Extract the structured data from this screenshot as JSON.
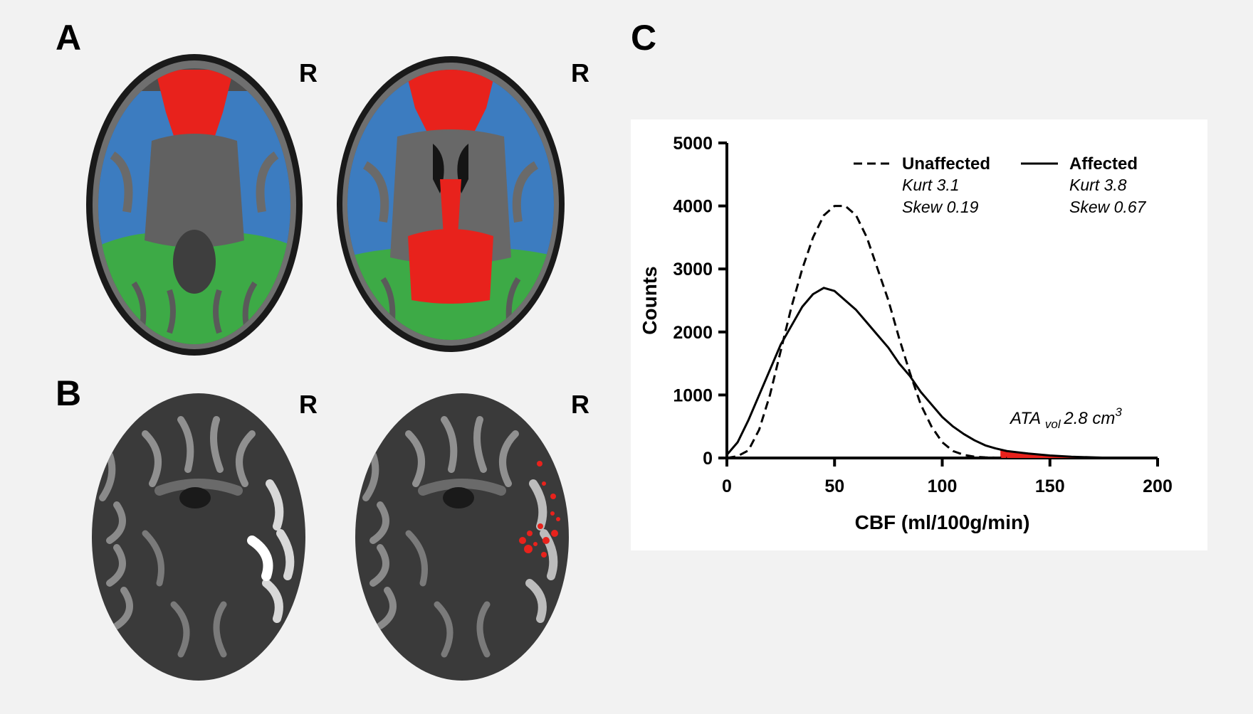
{
  "panels": {
    "A": {
      "letter": "A",
      "orientation": "R"
    },
    "B": {
      "letter": "B",
      "orientation": "R"
    },
    "C": {
      "letter": "C"
    }
  },
  "colors": {
    "frontal": "#e8221c",
    "lateral": "#3c7cc0",
    "occipital": "#3daa46",
    "hypoperfusion": "#e8221c"
  },
  "chart_data": {
    "type": "line",
    "xlabel": "CBF (ml/100g/min)",
    "ylabel": "Counts",
    "xlim": [
      0,
      200
    ],
    "ylim": [
      0,
      5000
    ],
    "xticks": [
      "0",
      "50",
      "100",
      "150",
      "200"
    ],
    "yticks": [
      "0",
      "1000",
      "2000",
      "3000",
      "4000",
      "5000"
    ],
    "grid": false,
    "legend_position": "top-right",
    "series": [
      {
        "name": "Unaffected",
        "style": "dashed",
        "kurt": "Kurt 3.1",
        "skew": "Skew 0.19",
        "x": [
          0,
          5,
          10,
          15,
          20,
          25,
          30,
          35,
          40,
          45,
          50,
          55,
          60,
          65,
          70,
          75,
          80,
          85,
          90,
          95,
          100,
          105,
          110,
          115,
          120,
          125,
          130
        ],
        "y": [
          0,
          30,
          120,
          450,
          1000,
          1700,
          2400,
          3000,
          3500,
          3850,
          4000,
          4000,
          3850,
          3500,
          3000,
          2500,
          1900,
          1350,
          850,
          500,
          250,
          110,
          50,
          20,
          10,
          5,
          0
        ]
      },
      {
        "name": "Affected",
        "style": "solid",
        "kurt": "Kurt 3.8",
        "skew": "Skew 0.67",
        "x": [
          0,
          5,
          10,
          15,
          20,
          25,
          30,
          35,
          40,
          45,
          50,
          55,
          60,
          65,
          70,
          75,
          80,
          85,
          90,
          95,
          100,
          105,
          110,
          115,
          120,
          125,
          130,
          140,
          150,
          160,
          170,
          180
        ],
        "y": [
          50,
          250,
          600,
          1000,
          1400,
          1800,
          2100,
          2400,
          2600,
          2700,
          2650,
          2500,
          2350,
          2150,
          1950,
          1750,
          1500,
          1300,
          1050,
          850,
          650,
          500,
          380,
          280,
          200,
          150,
          110,
          70,
          40,
          20,
          10,
          0
        ]
      }
    ],
    "annotation": {
      "main": "ATA",
      "sub": "vol",
      "value": "2.8 cm",
      "sup": "3",
      "shaded_from": 127
    }
  }
}
